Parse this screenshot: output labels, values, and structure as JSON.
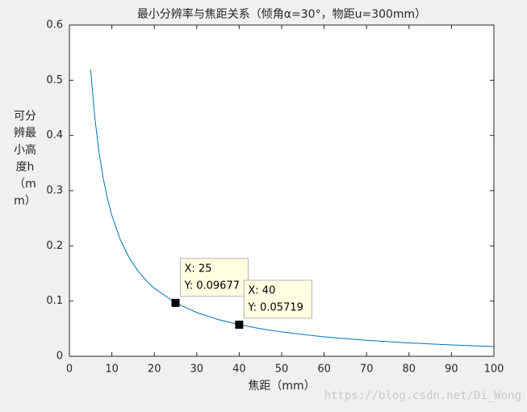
{
  "chart_data": {
    "type": "line",
    "title": "最小分辨率与焦距关系（倾角α=30°，物距u=300mm）",
    "x_label": "焦距（mm）",
    "y_label": "可分辨最小高度h（mm）",
    "x": [
      5,
      6,
      7,
      8,
      9,
      10,
      12,
      14,
      16,
      18,
      20,
      25,
      30,
      35,
      40,
      45,
      50,
      60,
      70,
      80,
      90,
      100
    ],
    "series": [
      {
        "color": "#0072bd",
        "values": [
          0.519,
          0.431,
          0.3682,
          0.3211,
          0.2845,
          0.2551,
          0.2111,
          0.1797,
          0.1561,
          0.1378,
          0.1232,
          0.0968,
          0.0792,
          0.0666,
          0.0572,
          0.0499,
          0.044,
          0.0352,
          0.0289,
          0.0242,
          0.0205,
          0.0176
        ]
      }
    ],
    "xlim": [
      0,
      100
    ],
    "ylim": [
      0,
      0.6
    ],
    "xticks": [
      0,
      10,
      20,
      30,
      40,
      50,
      60,
      70,
      80,
      90,
      100
    ],
    "yticks": [
      0,
      0.1,
      0.2,
      0.3,
      0.4,
      0.5,
      0.6
    ],
    "datatips": [
      {
        "x": 25,
        "y": 0.09677,
        "x_label": "X: 25",
        "y_label": "Y: 0.09677"
      },
      {
        "x": 40,
        "y": 0.05719,
        "x_label": "X: 40",
        "y_label": "Y: 0.05719"
      }
    ]
  },
  "watermark": "https://blog.csdn.net/Di_Wong"
}
